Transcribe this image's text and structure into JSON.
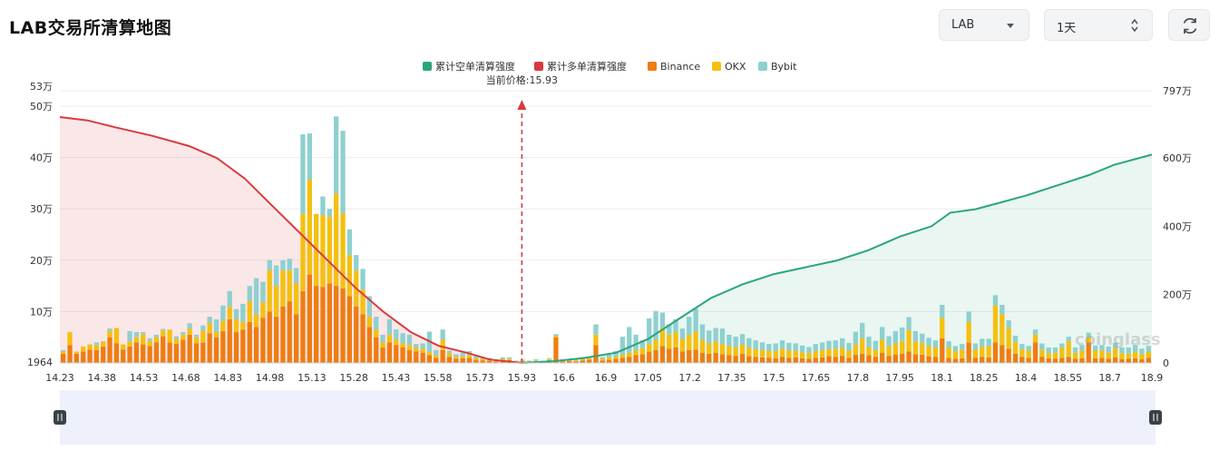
{
  "header": {
    "title": "LAB交易所清算地图"
  },
  "controls": {
    "symbol": {
      "value": "LAB",
      "icon": "chevron-down-icon"
    },
    "range": {
      "value": "1天",
      "icon": "up-down-arrows-icon"
    },
    "refresh_icon": "refresh-icon"
  },
  "colors": {
    "short_cum": "#2aa57f",
    "long_cum": "#d83a3f",
    "binance": "#ee7d13",
    "okx": "#f5c010",
    "bybit": "#8ed0d0",
    "current_price_line": "#d83a3f"
  },
  "watermark_text": "coinglass",
  "chart_data": {
    "type": "bar",
    "legend_position": "top-center",
    "legend": [
      "累计空单清算强度",
      "累计多单清算强度",
      "Binance",
      "OKX",
      "Bybit"
    ],
    "current_price": 15.93,
    "current_price_label": "当前价格:15.93",
    "x_tick_labels": [
      "14.23",
      "14.38",
      "14.53",
      "14.68",
      "14.83",
      "14.98",
      "15.13",
      "15.28",
      "15.43",
      "15.58",
      "15.73",
      "15.93",
      "16.6",
      "16.9",
      "17.05",
      "17.2",
      "17.35",
      "17.5",
      "17.65",
      "17.8",
      "17.95",
      "18.1",
      "18.25",
      "18.4",
      "18.55",
      "18.7",
      "18.9"
    ],
    "y_left_tick_labels": [
      "1964",
      "10万",
      "20万",
      "30万",
      "40万",
      "50万",
      "53万"
    ],
    "y_left_ticks": [
      1964,
      100000,
      200000,
      300000,
      400000,
      500000,
      530000
    ],
    "y_left_range": [
      0,
      530000
    ],
    "y_right_tick_labels": [
      "0",
      "200万",
      "400万",
      "600万",
      "797万"
    ],
    "y_right_ticks": [
      0,
      2000000,
      4000000,
      6000000,
      7970000
    ],
    "y_right_range": [
      0,
      7970000
    ],
    "bars": {
      "note_units": "per-price-bucket liquidation strength, stacked Binance + OKX + Bybit",
      "binance": [
        18000,
        35000,
        18000,
        22000,
        26000,
        25000,
        32000,
        50000,
        38000,
        26000,
        32000,
        40000,
        36000,
        33000,
        40000,
        52000,
        40000,
        37000,
        45000,
        55000,
        38000,
        40000,
        58000,
        50000,
        62000,
        85000,
        60000,
        65000,
        80000,
        70000,
        88000,
        100000,
        90000,
        110000,
        120000,
        95000,
        140000,
        172000,
        150000,
        148000,
        155000,
        150000,
        145000,
        130000,
        110000,
        95000,
        70000,
        50000,
        30000,
        40000,
        35000,
        30000,
        25000,
        22000,
        20000,
        15000,
        10000,
        25000,
        12000,
        8000,
        9000,
        10000,
        6000,
        5000,
        4000,
        3000,
        5000,
        5500,
        2000,
        3000,
        2000,
        3000,
        2000,
        5500,
        50000,
        3000,
        4000,
        3000,
        5000,
        6000,
        35000,
        5000,
        6000,
        8000,
        10000,
        12000,
        15000,
        17000,
        22000,
        25000,
        33000,
        28000,
        30000,
        22000,
        25000,
        26000,
        20000,
        18000,
        20000,
        17000,
        15000,
        14000,
        18000,
        13000,
        12000,
        11000,
        10000,
        9000,
        12000,
        10000,
        11000,
        9000,
        8000,
        10000,
        11000,
        13000,
        12000,
        14000,
        10000,
        16000,
        18000,
        15000,
        12000,
        20000,
        14000,
        16000,
        18000,
        22000,
        17000,
        16000,
        13000,
        12000,
        48000,
        10000,
        8000,
        9000,
        40000,
        10000,
        12000,
        11000,
        40000,
        35000,
        28000,
        18000,
        12000,
        10000,
        40000,
        12000,
        9000,
        8000,
        10000,
        12000,
        8000,
        9000,
        40000,
        9000,
        10000,
        8000,
        11000,
        7000,
        8000,
        9000,
        7000,
        10000
      ],
      "okx": [
        4000,
        25000,
        4000,
        10000,
        10000,
        10000,
        10000,
        12000,
        30000,
        10000,
        10000,
        10000,
        20000,
        10000,
        10000,
        11000,
        25000,
        10000,
        10000,
        12000,
        12000,
        23000,
        20000,
        10000,
        20000,
        25000,
        25000,
        15000,
        40000,
        25000,
        30000,
        80000,
        60000,
        70000,
        60000,
        60000,
        150000,
        185000,
        140000,
        140000,
        130000,
        180000,
        147000,
        80000,
        70000,
        48000,
        20000,
        15000,
        10000,
        15000,
        10000,
        8000,
        10000,
        8000,
        8000,
        6000,
        5000,
        20000,
        7000,
        4000,
        4000,
        5000,
        3000,
        3000,
        3000,
        2000,
        3000,
        3000,
        1500,
        2000,
        1500,
        2000,
        1500,
        2000,
        3000,
        2000,
        2000,
        2000,
        3000,
        3000,
        20000,
        3000,
        5000,
        5000,
        6000,
        8000,
        10000,
        12000,
        15000,
        20000,
        35000,
        27000,
        30000,
        25000,
        30000,
        35000,
        25000,
        20000,
        22000,
        20000,
        18000,
        17000,
        18000,
        17000,
        15000,
        14000,
        13000,
        14000,
        16000,
        14000,
        13000,
        12000,
        11000,
        13000,
        14000,
        14000,
        15000,
        16000,
        14000,
        20000,
        30000,
        16000,
        13000,
        25000,
        18000,
        22000,
        25000,
        42000,
        25000,
        23000,
        20000,
        18000,
        40000,
        20000,
        15000,
        17000,
        40000,
        16000,
        20000,
        22000,
        72000,
        60000,
        40000,
        23000,
        15000,
        14000,
        15000,
        14000,
        10000,
        12000,
        20000,
        30000,
        12000,
        15000,
        10000,
        15000,
        14000,
        12000,
        18000,
        12000,
        10000,
        13000,
        11000,
        12000
      ],
      "bybit": [
        3000,
        0,
        0,
        0,
        0,
        5000,
        0,
        5000,
        0,
        0,
        20000,
        10000,
        4000,
        5000,
        5000,
        3000,
        0,
        5000,
        5000,
        10000,
        5000,
        10000,
        12000,
        25000,
        30000,
        30000,
        20000,
        35000,
        30000,
        70000,
        40000,
        20000,
        40000,
        20000,
        23000,
        30000,
        155000,
        90000,
        0,
        36000,
        15000,
        150000,
        160000,
        50000,
        30000,
        40000,
        40000,
        25000,
        15000,
        30000,
        20000,
        20000,
        20000,
        7000,
        10000,
        40000,
        10000,
        20000,
        5000,
        5000,
        7000,
        8000,
        4000,
        4000,
        3000,
        2000,
        3000,
        2500,
        1000,
        1500,
        1000,
        2000,
        1000,
        2000,
        3000,
        2000,
        2000,
        2000,
        3000,
        3000,
        20000,
        3000,
        5000,
        10000,
        35000,
        50000,
        30000,
        15000,
        50000,
        56000,
        30000,
        20000,
        25000,
        20000,
        35000,
        45000,
        30000,
        25000,
        26000,
        30000,
        22000,
        20000,
        20000,
        18000,
        17000,
        15000,
        14000,
        15000,
        16000,
        15000,
        14000,
        13000,
        12000,
        14000,
        15000,
        16000,
        17000,
        18000,
        15000,
        25000,
        30000,
        20000,
        18000,
        25000,
        20000,
        24000,
        26000,
        25000,
        20000,
        18000,
        16000,
        14000,
        25000,
        12000,
        10000,
        11000,
        20000,
        12000,
        15000,
        14000,
        20000,
        18000,
        15000,
        12000,
        10000,
        9000,
        10000,
        12000,
        11000,
        10000,
        8000,
        9000,
        10000,
        11000,
        9000,
        10000,
        11000,
        12000,
        10000,
        11000,
        12000,
        13000,
        10000,
        11000
      ]
    },
    "series": [
      {
        "name": "累计多单清算强度",
        "axis": "right",
        "x_range": [
          "14.23",
          "15.93"
        ],
        "points": [
          [
            0,
            7200000
          ],
          [
            0.06,
            7100000
          ],
          [
            0.12,
            6900000
          ],
          [
            0.2,
            6650000
          ],
          [
            0.28,
            6350000
          ],
          [
            0.34,
            6000000
          ],
          [
            0.4,
            5400000
          ],
          [
            0.46,
            4600000
          ],
          [
            0.52,
            3800000
          ],
          [
            0.58,
            3000000
          ],
          [
            0.64,
            2200000
          ],
          [
            0.7,
            1500000
          ],
          [
            0.76,
            900000
          ],
          [
            0.82,
            500000
          ],
          [
            0.88,
            300000
          ],
          [
            0.93,
            100000
          ],
          [
            1.0,
            0
          ]
        ]
      },
      {
        "name": "累计空单清算强度",
        "axis": "right",
        "x_range": [
          "15.93",
          "18.9"
        ],
        "points": [
          [
            0,
            0
          ],
          [
            0.05,
            50000
          ],
          [
            0.1,
            150000
          ],
          [
            0.15,
            300000
          ],
          [
            0.2,
            700000
          ],
          [
            0.25,
            1300000
          ],
          [
            0.3,
            1900000
          ],
          [
            0.35,
            2300000
          ],
          [
            0.4,
            2600000
          ],
          [
            0.45,
            2800000
          ],
          [
            0.5,
            3000000
          ],
          [
            0.55,
            3300000
          ],
          [
            0.6,
            3700000
          ],
          [
            0.65,
            4000000
          ],
          [
            0.68,
            4400000
          ],
          [
            0.72,
            4500000
          ],
          [
            0.76,
            4700000
          ],
          [
            0.8,
            4900000
          ],
          [
            0.85,
            5200000
          ],
          [
            0.9,
            5500000
          ],
          [
            0.94,
            5800000
          ],
          [
            1.0,
            6100000
          ]
        ]
      }
    ]
  }
}
